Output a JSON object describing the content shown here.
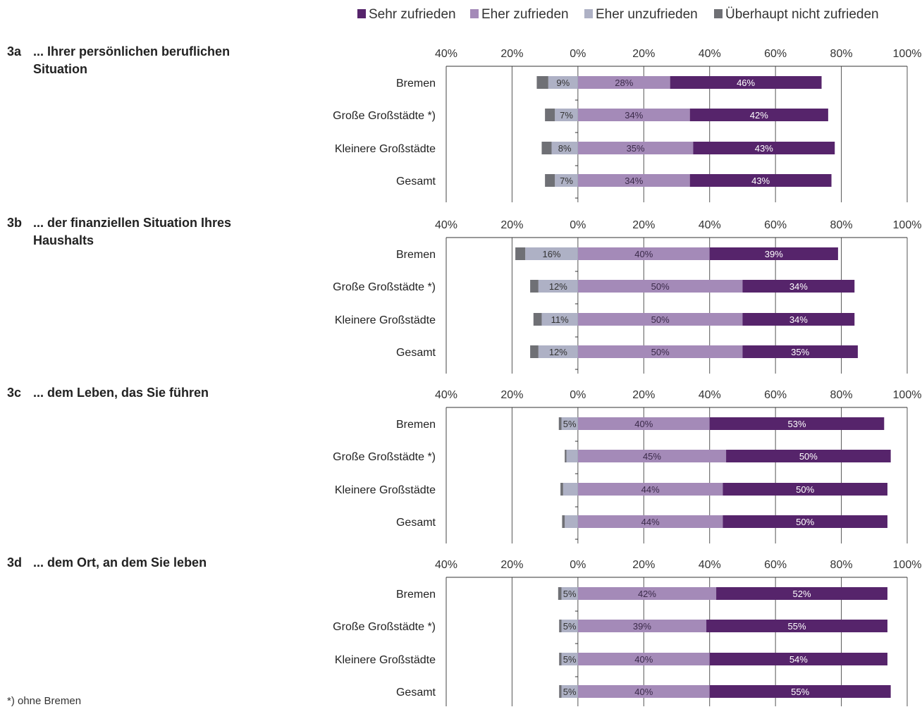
{
  "legend": [
    {
      "label": "Sehr zufrieden",
      "color": "#56246b"
    },
    {
      "label": "Eher zufrieden",
      "color": "#a48ab8"
    },
    {
      "label": "Eher unzufrieden",
      "color": "#aeb1c5"
    },
    {
      "label": "Überhaupt nicht zufrieden",
      "color": "#6f7075"
    }
  ],
  "footnote": "*) ohne Bremen",
  "chart_data": [
    {
      "type": "bar",
      "orientation": "horizontal",
      "stacked": "diverging",
      "id": "3a",
      "title": "... Ihrer persönlichen beruflichen Situation",
      "title_lines": [
        "... Ihrer persönlichen beruflichen",
        "Situation"
      ],
      "xlim": [
        -40,
        100
      ],
      "xticks": [
        -40,
        -20,
        0,
        20,
        40,
        60,
        80,
        100
      ],
      "xtick_labels": [
        "40%",
        "20%",
        "0%",
        "20%",
        "40%",
        "60%",
        "80%",
        "100%"
      ],
      "categories": [
        "Bremen",
        "Große Großstädte *)",
        "Kleinere Großstädte",
        "Gesamt"
      ],
      "series": [
        {
          "name": "Sehr zufrieden",
          "values": [
            46,
            42,
            43,
            43
          ],
          "labels": [
            "46%",
            "42%",
            "43%",
            "43%"
          ]
        },
        {
          "name": "Eher zufrieden",
          "values": [
            28,
            34,
            35,
            34
          ],
          "labels": [
            "28%",
            "34%",
            "35%",
            "34%"
          ]
        },
        {
          "name": "Eher unzufrieden",
          "values": [
            9,
            7,
            8,
            7
          ],
          "labels": [
            "9%",
            "7%",
            "8%",
            "7%"
          ]
        },
        {
          "name": "Überhaupt nicht zufrieden",
          "values": [
            3.5,
            3,
            3,
            3
          ],
          "labels": [
            "",
            "",
            "",
            ""
          ]
        }
      ]
    },
    {
      "type": "bar",
      "orientation": "horizontal",
      "stacked": "diverging",
      "id": "3b",
      "title": "... der finanziellen Situation Ihres Haushalts",
      "title_lines": [
        "... der finanziellen Situation Ihres",
        "Haushalts"
      ],
      "xlim": [
        -40,
        100
      ],
      "xticks": [
        -40,
        -20,
        0,
        20,
        40,
        60,
        80,
        100
      ],
      "xtick_labels": [
        "40%",
        "20%",
        "0%",
        "20%",
        "40%",
        "60%",
        "80%",
        "100%"
      ],
      "categories": [
        "Bremen",
        "Große Großstädte *)",
        "Kleinere Großstädte",
        "Gesamt"
      ],
      "series": [
        {
          "name": "Sehr zufrieden",
          "values": [
            39,
            34,
            34,
            35
          ],
          "labels": [
            "39%",
            "34%",
            "34%",
            "35%"
          ]
        },
        {
          "name": "Eher zufrieden",
          "values": [
            40,
            50,
            50,
            50
          ],
          "labels": [
            "40%",
            "50%",
            "50%",
            "50%"
          ]
        },
        {
          "name": "Eher unzufrieden",
          "values": [
            16,
            12,
            11,
            12
          ],
          "labels": [
            "16%",
            "12%",
            "11%",
            "12%"
          ]
        },
        {
          "name": "Überhaupt nicht zufrieden",
          "values": [
            3,
            2.5,
            2.5,
            2.5
          ],
          "labels": [
            "",
            "",
            "",
            ""
          ]
        }
      ]
    },
    {
      "type": "bar",
      "orientation": "horizontal",
      "stacked": "diverging",
      "id": "3c",
      "title": "... dem Leben, das Sie führen",
      "title_lines": [
        "... dem Leben, das Sie führen"
      ],
      "xlim": [
        -40,
        100
      ],
      "xticks": [
        -40,
        -20,
        0,
        20,
        40,
        60,
        80,
        100
      ],
      "xtick_labels": [
        "40%",
        "20%",
        "0%",
        "20%",
        "40%",
        "60%",
        "80%",
        "100%"
      ],
      "categories": [
        "Bremen",
        "Große Großstädte *)",
        "Kleinere Großstädte",
        "Gesamt"
      ],
      "series": [
        {
          "name": "Sehr zufrieden",
          "values": [
            53,
            50,
            50,
            50
          ],
          "labels": [
            "53%",
            "50%",
            "50%",
            "50%"
          ]
        },
        {
          "name": "Eher zufrieden",
          "values": [
            40,
            45,
            44,
            44
          ],
          "labels": [
            "40%",
            "45%",
            "44%",
            "44%"
          ]
        },
        {
          "name": "Eher unzufrieden",
          "values": [
            5,
            3.5,
            4.5,
            4
          ],
          "labels": [
            "5%",
            "",
            "",
            ""
          ]
        },
        {
          "name": "Überhaupt nicht zufrieden",
          "values": [
            0.8,
            0.5,
            0.8,
            0.8
          ],
          "labels": [
            "",
            "",
            "",
            ""
          ]
        }
      ]
    },
    {
      "type": "bar",
      "orientation": "horizontal",
      "stacked": "diverging",
      "id": "3d",
      "title": "... dem Ort, an dem Sie leben",
      "title_lines": [
        "... dem Ort, an dem Sie leben"
      ],
      "xlim": [
        -40,
        100
      ],
      "xticks": [
        -40,
        -20,
        0,
        20,
        40,
        60,
        80,
        100
      ],
      "xtick_labels": [
        "40%",
        "20%",
        "0%",
        "20%",
        "40%",
        "60%",
        "80%",
        "100%"
      ],
      "categories": [
        "Bremen",
        "Große Großstädte *)",
        "Kleinere Großstädte",
        "Gesamt"
      ],
      "series": [
        {
          "name": "Sehr zufrieden",
          "values": [
            52,
            55,
            54,
            55
          ],
          "labels": [
            "52%",
            "55%",
            "54%",
            "55%"
          ]
        },
        {
          "name": "Eher zufrieden",
          "values": [
            42,
            39,
            40,
            40
          ],
          "labels": [
            "42%",
            "39%",
            "40%",
            "40%"
          ]
        },
        {
          "name": "Eher unzufrieden",
          "values": [
            5,
            5,
            5,
            5
          ],
          "labels": [
            "5%",
            "5%",
            "5%",
            "5%"
          ]
        },
        {
          "name": "Überhaupt nicht zufrieden",
          "values": [
            1,
            0.7,
            0.7,
            0.7
          ],
          "labels": [
            "",
            "",
            "",
            ""
          ]
        }
      ]
    }
  ]
}
